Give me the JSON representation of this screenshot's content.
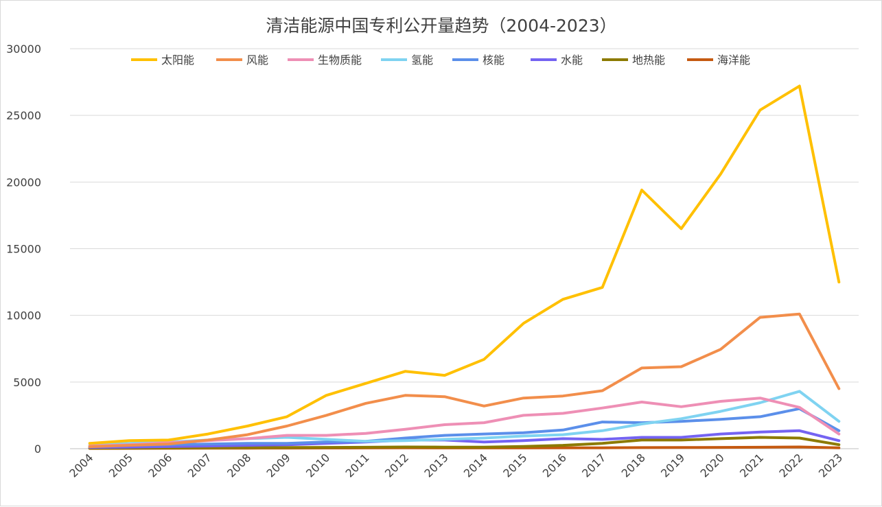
{
  "chart_data": {
    "type": "line",
    "title": "清洁能源中国专利公开量趋势（2004-2023）",
    "xlabel": "",
    "ylabel": "",
    "ylim": [
      0,
      30000
    ],
    "yticks": [
      0,
      5000,
      10000,
      15000,
      20000,
      25000,
      30000
    ],
    "grid": true,
    "legend_position": "top",
    "categories": [
      "2004",
      "2005",
      "2006",
      "2007",
      "2008",
      "2009",
      "2010",
      "2011",
      "2012",
      "2013",
      "2014",
      "2015",
      "2016",
      "2017",
      "2018",
      "2019",
      "2020",
      "2021",
      "2022",
      "2023"
    ],
    "series": [
      {
        "name": "太阳能",
        "color": "#FFC000",
        "values": [
          400,
          600,
          650,
          1100,
          1700,
          2400,
          4000,
          4900,
          5800,
          5500,
          6700,
          9400,
          11200,
          12100,
          19400,
          16500,
          20600,
          25400,
          27200,
          12500
        ]
      },
      {
        "name": "风能",
        "color": "#F28E4B",
        "values": [
          150,
          250,
          350,
          650,
          1050,
          1700,
          2500,
          3400,
          4000,
          3900,
          3200,
          3800,
          3950,
          4350,
          6050,
          6150,
          7450,
          9850,
          10100,
          4500
        ]
      },
      {
        "name": "生物质能",
        "color": "#EE8FB5",
        "values": [
          200,
          300,
          450,
          600,
          750,
          1000,
          1000,
          1150,
          1450,
          1800,
          1950,
          2500,
          2650,
          3050,
          3500,
          3150,
          3550,
          3800,
          3100,
          1100
        ]
      },
      {
        "name": "氢能",
        "color": "#7FD3F1",
        "values": [
          250,
          400,
          500,
          650,
          750,
          850,
          700,
          550,
          600,
          700,
          800,
          950,
          1050,
          1350,
          1850,
          2250,
          2800,
          3450,
          4300,
          2050
        ]
      },
      {
        "name": "核能",
        "color": "#5B8FEA",
        "values": [
          150,
          250,
          300,
          350,
          400,
          400,
          500,
          550,
          800,
          1000,
          1100,
          1200,
          1400,
          2000,
          1950,
          2050,
          2200,
          2400,
          3000,
          1350
        ]
      },
      {
        "name": "水能",
        "color": "#7463F2",
        "values": [
          100,
          120,
          160,
          200,
          250,
          300,
          400,
          500,
          650,
          650,
          500,
          600,
          750,
          700,
          850,
          850,
          1100,
          1250,
          1350,
          600
        ]
      },
      {
        "name": "地热能",
        "color": "#8C7A00",
        "values": [
          40,
          50,
          60,
          70,
          80,
          90,
          100,
          110,
          130,
          120,
          120,
          170,
          250,
          400,
          650,
          650,
          750,
          850,
          800,
          300
        ]
      },
      {
        "name": "海洋能",
        "color": "#C55A11",
        "values": [
          20,
          25,
          30,
          35,
          40,
          45,
          50,
          55,
          60,
          55,
          55,
          55,
          60,
          65,
          80,
          90,
          100,
          110,
          130,
          60
        ]
      }
    ]
  }
}
